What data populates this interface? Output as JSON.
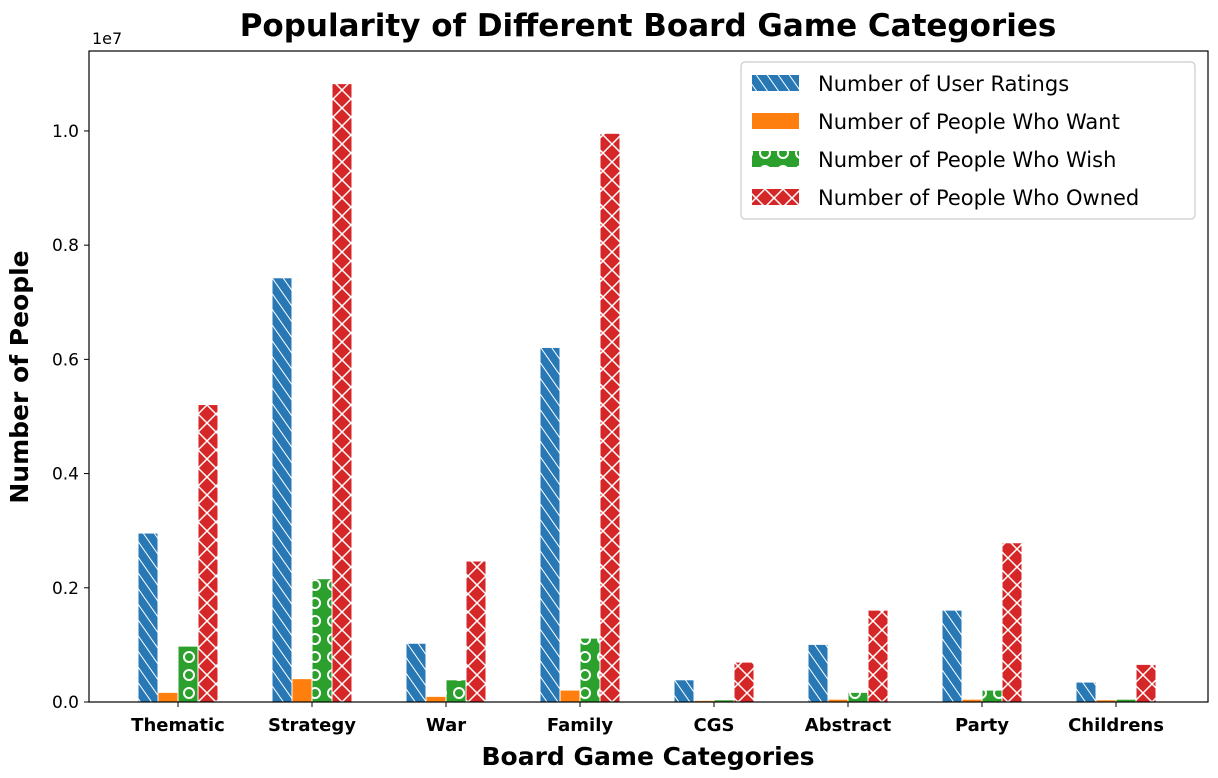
{
  "chart_data": {
    "type": "bar",
    "title": "Popularity of Different Board Game Categories",
    "xlabel": "Board Game Categories",
    "ylabel": "Number of People",
    "offset_text": "1e7",
    "categories": [
      "Thematic",
      "Strategy",
      "War",
      "Family",
      "CGS",
      "Abstract",
      "Party",
      "Childrens"
    ],
    "ylim": [
      0,
      1.14
    ],
    "yticks": [
      "0.0",
      "0.2",
      "0.4",
      "0.6",
      "0.8",
      "1.0"
    ],
    "ytick_values": [
      0,
      0.2,
      0.4,
      0.6,
      0.8,
      1.0
    ],
    "grid": false,
    "legend_position": "top-right",
    "series": [
      {
        "name": "Number of User Ratings",
        "color": "#2878b5",
        "hatch": "diagonal",
        "values": [
          0.295,
          0.742,
          0.102,
          0.62,
          0.038,
          0.1,
          0.16,
          0.034
        ]
      },
      {
        "name": "Number of People Who Want",
        "color": "#ff7f0e",
        "hatch": "none",
        "values": [
          0.016,
          0.04,
          0.009,
          0.02,
          0.002,
          0.004,
          0.004,
          0.003
        ]
      },
      {
        "name": "Number of People Who Wish",
        "color": "#2ca02c",
        "hatch": "circles",
        "values": [
          0.097,
          0.215,
          0.038,
          0.111,
          0.003,
          0.016,
          0.02,
          0.004
        ]
      },
      {
        "name": "Number of People Who Owned",
        "color": "#d62728",
        "hatch": "cross",
        "values": [
          0.52,
          1.082,
          0.246,
          0.995,
          0.069,
          0.16,
          0.278,
          0.065
        ]
      }
    ]
  }
}
